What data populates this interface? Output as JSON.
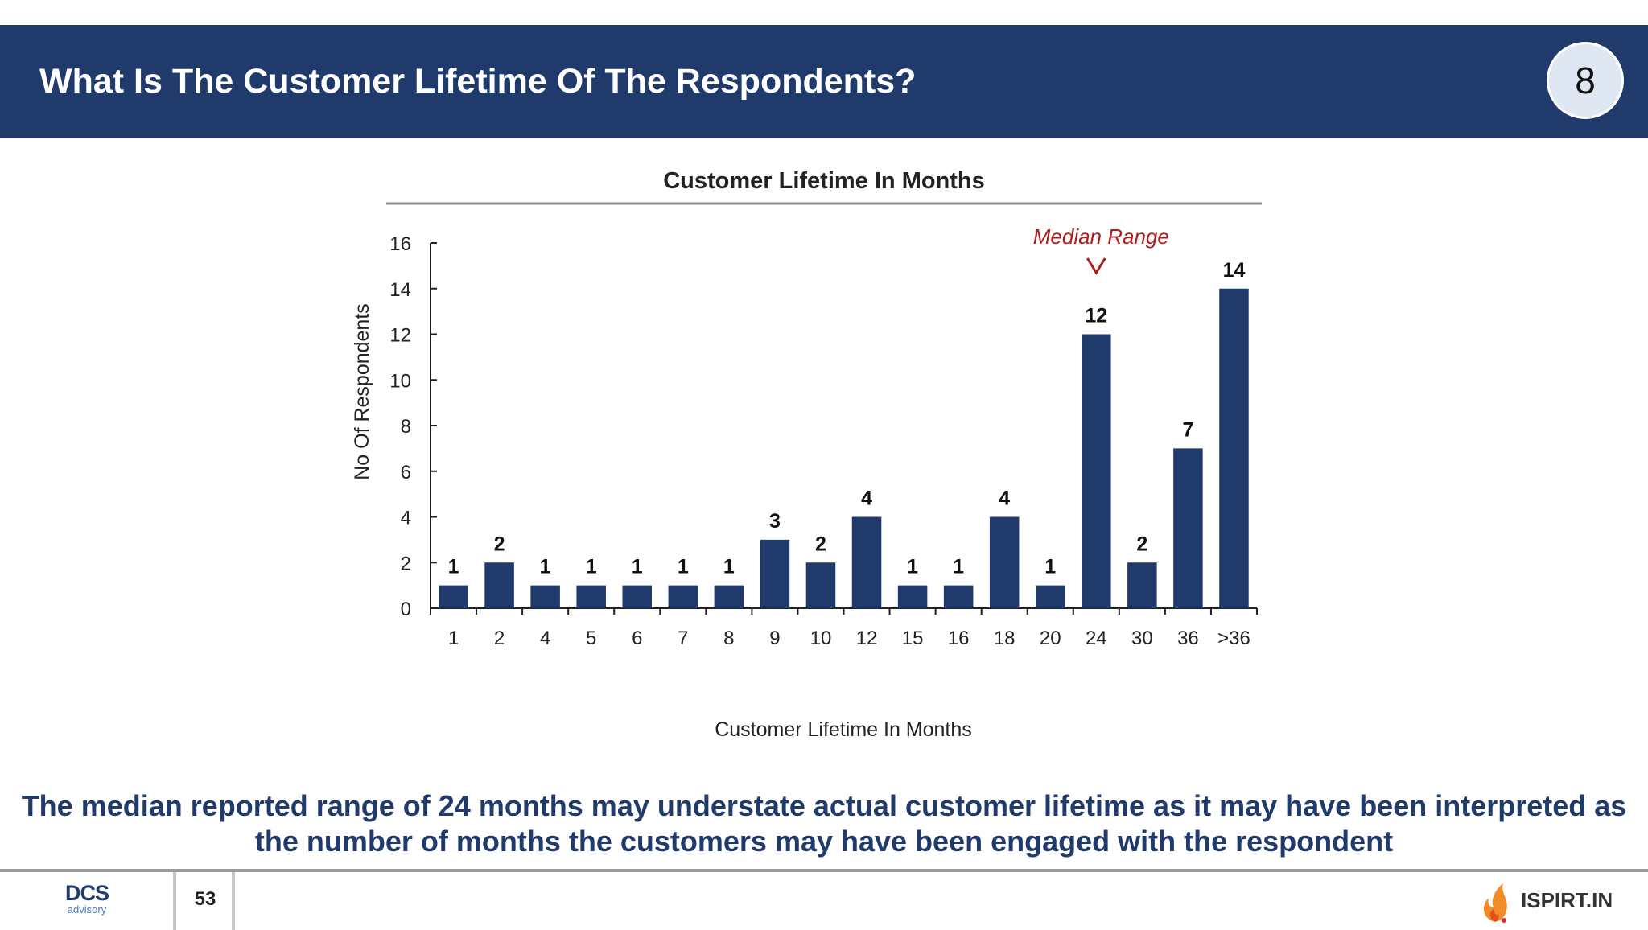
{
  "header": {
    "title": "What Is The Customer Lifetime Of The Respondents?",
    "slide_badge": "8"
  },
  "colors": {
    "header_bg": "#1f3a6b",
    "bar": "#1f3a6b",
    "annotation": "#b01c1c",
    "takeaway_text": "#1f3a6b"
  },
  "chart_data": {
    "type": "bar",
    "title": "Customer Lifetime In Months",
    "xlabel": "Customer Lifetime In Months",
    "ylabel": "No Of Respondents",
    "categories": [
      "1",
      "2",
      "4",
      "5",
      "6",
      "7",
      "8",
      "9",
      "10",
      "12",
      "15",
      "16",
      "18",
      "20",
      "24",
      "30",
      "36",
      ">36"
    ],
    "values": [
      1,
      2,
      1,
      1,
      1,
      1,
      1,
      3,
      2,
      4,
      1,
      1,
      4,
      1,
      12,
      2,
      7,
      14
    ],
    "ylim": [
      0,
      16
    ],
    "yticks": [
      0,
      2,
      4,
      6,
      8,
      10,
      12,
      14,
      16
    ],
    "grid": false,
    "legend": "none",
    "data_labels": true,
    "annotation": {
      "text": "Median Range",
      "category": "24"
    }
  },
  "takeaway": {
    "line1": "The median reported range of 24 months may understate actual customer lifetime as it may have been interpreted as",
    "line2": "the number of months the customers may have been engaged with the respondent"
  },
  "footer": {
    "logo_main": "DCS",
    "logo_sub": "advisory",
    "page_number": "53",
    "brand": "ISPIRT.IN"
  }
}
